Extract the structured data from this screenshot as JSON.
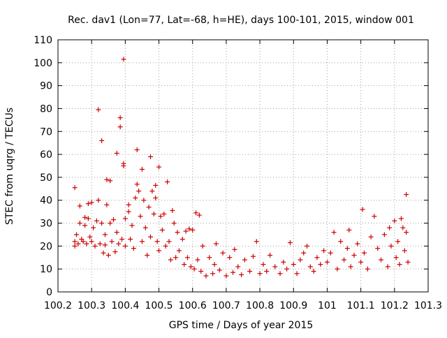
{
  "chart_data": {
    "type": "scatter",
    "title": "Rec. dav1 (Lon=77, Lat=-68, h=HE), days 100-101, 2015, window 001",
    "xlabel": "GPS time / Days of year 2015",
    "ylabel": "STEC from uqrg / TECUs",
    "xlim": [
      100.2,
      101.3
    ],
    "ylim": [
      0,
      110
    ],
    "xticks": [
      "100.2",
      "100.3",
      "100.4",
      "100.5",
      "100.6",
      "100.7",
      "100.8",
      "100.9",
      "101",
      "101.1",
      "101.2",
      "101.3"
    ],
    "yticks": [
      "0",
      "10",
      "20",
      "30",
      "40",
      "50",
      "60",
      "70",
      "80",
      "90",
      "100",
      "110"
    ],
    "grid": true,
    "marker": "plus",
    "color": "#cc0000",
    "points": [
      [
        100.25,
        45.5
      ],
      [
        100.25,
        22
      ],
      [
        100.25,
        20
      ],
      [
        100.255,
        25
      ],
      [
        100.26,
        21
      ],
      [
        100.265,
        37.5
      ],
      [
        100.265,
        30
      ],
      [
        100.27,
        23
      ],
      [
        100.275,
        22
      ],
      [
        100.28,
        32.5
      ],
      [
        100.28,
        29
      ],
      [
        100.285,
        21
      ],
      [
        100.29,
        38.5
      ],
      [
        100.29,
        32
      ],
      [
        100.295,
        24
      ],
      [
        100.3,
        22
      ],
      [
        100.3,
        39
      ],
      [
        100.305,
        28
      ],
      [
        100.31,
        20
      ],
      [
        100.315,
        31
      ],
      [
        100.32,
        79.5
      ],
      [
        100.32,
        40
      ],
      [
        100.325,
        21
      ],
      [
        100.33,
        66
      ],
      [
        100.33,
        30
      ],
      [
        100.335,
        17
      ],
      [
        100.34,
        25
      ],
      [
        100.34,
        20.5
      ],
      [
        100.345,
        49
      ],
      [
        100.345,
        38
      ],
      [
        100.35,
        16
      ],
      [
        100.355,
        48.5
      ],
      [
        100.355,
        30
      ],
      [
        100.36,
        22
      ],
      [
        100.365,
        31.5
      ],
      [
        100.37,
        17.5
      ],
      [
        100.375,
        60.5
      ],
      [
        100.375,
        26
      ],
      [
        100.38,
        21
      ],
      [
        100.385,
        76
      ],
      [
        100.385,
        72
      ],
      [
        100.39,
        23
      ],
      [
        100.395,
        101.5
      ],
      [
        100.395,
        56
      ],
      [
        100.395,
        55
      ],
      [
        100.4,
        32
      ],
      [
        100.4,
        20
      ],
      [
        100.41,
        38
      ],
      [
        100.41,
        35
      ],
      [
        100.415,
        23
      ],
      [
        100.42,
        29
      ],
      [
        100.425,
        19
      ],
      [
        100.43,
        41
      ],
      [
        100.435,
        62
      ],
      [
        100.435,
        47
      ],
      [
        100.44,
        44
      ],
      [
        100.445,
        33
      ],
      [
        100.45,
        53.5
      ],
      [
        100.45,
        22
      ],
      [
        100.455,
        40
      ],
      [
        100.46,
        28
      ],
      [
        100.465,
        16
      ],
      [
        100.47,
        37
      ],
      [
        100.475,
        59
      ],
      [
        100.475,
        24
      ],
      [
        100.48,
        44
      ],
      [
        100.485,
        34
      ],
      [
        100.49,
        46.5
      ],
      [
        100.49,
        41
      ],
      [
        100.495,
        22
      ],
      [
        100.5,
        54.5
      ],
      [
        100.5,
        18
      ],
      [
        100.505,
        33
      ],
      [
        100.51,
        27
      ],
      [
        100.515,
        34
      ],
      [
        100.52,
        20
      ],
      [
        100.525,
        48
      ],
      [
        100.53,
        22
      ],
      [
        100.535,
        14
      ],
      [
        100.54,
        35.5
      ],
      [
        100.545,
        30
      ],
      [
        100.55,
        15
      ],
      [
        100.555,
        26
      ],
      [
        100.56,
        18
      ],
      [
        100.57,
        23
      ],
      [
        100.575,
        12
      ],
      [
        100.58,
        26.5
      ],
      [
        100.585,
        15
      ],
      [
        100.59,
        27.5
      ],
      [
        100.595,
        11
      ],
      [
        100.6,
        27
      ],
      [
        100.605,
        10
      ],
      [
        100.61,
        34.5
      ],
      [
        100.615,
        14
      ],
      [
        100.62,
        33.5
      ],
      [
        100.625,
        9
      ],
      [
        100.63,
        20
      ],
      [
        100.64,
        7
      ],
      [
        100.65,
        15
      ],
      [
        100.66,
        8
      ],
      [
        100.665,
        12
      ],
      [
        100.67,
        21
      ],
      [
        100.68,
        9.5
      ],
      [
        100.69,
        17
      ],
      [
        100.7,
        7
      ],
      [
        100.71,
        15
      ],
      [
        100.72,
        8.5
      ],
      [
        100.725,
        18.5
      ],
      [
        100.735,
        11
      ],
      [
        100.745,
        7.5
      ],
      [
        100.755,
        14
      ],
      [
        100.77,
        9
      ],
      [
        100.78,
        15.5
      ],
      [
        100.79,
        22
      ],
      [
        100.8,
        8
      ],
      [
        100.81,
        12
      ],
      [
        100.82,
        9
      ],
      [
        100.83,
        16
      ],
      [
        100.845,
        11
      ],
      [
        100.86,
        8
      ],
      [
        100.87,
        13
      ],
      [
        100.88,
        10
      ],
      [
        100.89,
        21.5
      ],
      [
        100.9,
        12
      ],
      [
        100.91,
        8
      ],
      [
        100.92,
        14
      ],
      [
        100.93,
        17
      ],
      [
        100.94,
        20
      ],
      [
        100.95,
        11
      ],
      [
        100.96,
        9
      ],
      [
        100.97,
        15
      ],
      [
        100.98,
        12
      ],
      [
        100.99,
        18
      ],
      [
        101,
        13
      ],
      [
        101.01,
        17
      ],
      [
        101.02,
        26
      ],
      [
        101.03,
        10
      ],
      [
        101.04,
        22
      ],
      [
        101.05,
        14
      ],
      [
        101.06,
        19
      ],
      [
        101.065,
        27
      ],
      [
        101.07,
        11
      ],
      [
        101.08,
        16
      ],
      [
        101.09,
        21
      ],
      [
        101.1,
        13
      ],
      [
        101.105,
        36
      ],
      [
        101.11,
        17
      ],
      [
        101.12,
        10
      ],
      [
        101.13,
        24
      ],
      [
        101.14,
        33
      ],
      [
        101.15,
        19
      ],
      [
        101.16,
        14
      ],
      [
        101.17,
        25
      ],
      [
        101.18,
        11
      ],
      [
        101.185,
        28
      ],
      [
        101.19,
        20
      ],
      [
        101.2,
        31
      ],
      [
        101.205,
        15
      ],
      [
        101.21,
        22
      ],
      [
        101.215,
        12
      ],
      [
        101.22,
        32
      ],
      [
        101.225,
        28
      ],
      [
        101.23,
        18
      ],
      [
        101.235,
        42.5
      ],
      [
        101.235,
        26
      ],
      [
        101.24,
        13
      ]
    ]
  }
}
